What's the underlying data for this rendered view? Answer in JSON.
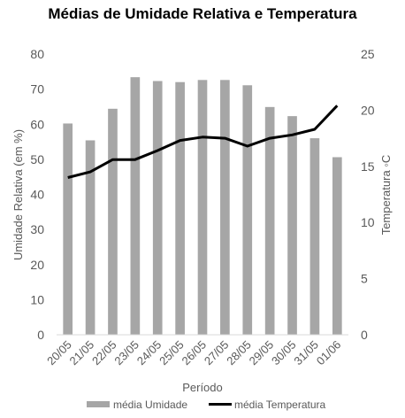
{
  "chart_data": {
    "type": "bar+line",
    "title": "Médias de Umidade Relativa e Temperatura",
    "xlabel": "Período",
    "ylabel_left": "Umidade Relativa (em %)",
    "ylabel_right": "Temperatura ◦C",
    "categories": [
      "20/05",
      "21/05",
      "22/05",
      "23/05",
      "24/05",
      "25/05",
      "26/05",
      "27/05",
      "28/05",
      "29/05",
      "30/05",
      "31/05",
      "01/06"
    ],
    "series": [
      {
        "name": "média Umidade",
        "type": "bar",
        "axis": "left",
        "color": "#a6a6a6",
        "values": [
          60.2,
          55.4,
          64.4,
          73.4,
          72.3,
          72.0,
          72.6,
          72.6,
          71.1,
          64.9,
          62.3,
          56.0,
          50.6
        ]
      },
      {
        "name": "média Temperatura",
        "type": "line",
        "axis": "right",
        "color": "#000000",
        "values": [
          14.0,
          14.5,
          15.6,
          15.6,
          16.4,
          17.3,
          17.6,
          17.5,
          16.8,
          17.5,
          17.8,
          18.3,
          20.4
        ]
      }
    ],
    "ylim_left": [
      0,
      80
    ],
    "yticks_left": [
      "0",
      "10",
      "20",
      "30",
      "40",
      "50",
      "60",
      "70",
      "80"
    ],
    "ylim_right": [
      0,
      25
    ],
    "yticks_right": [
      "0",
      "5",
      "10",
      "15",
      "20",
      "25"
    ],
    "legend": {
      "position": "bottom",
      "items": [
        "média Umidade",
        "média Temperatura"
      ]
    },
    "grid": false
  }
}
